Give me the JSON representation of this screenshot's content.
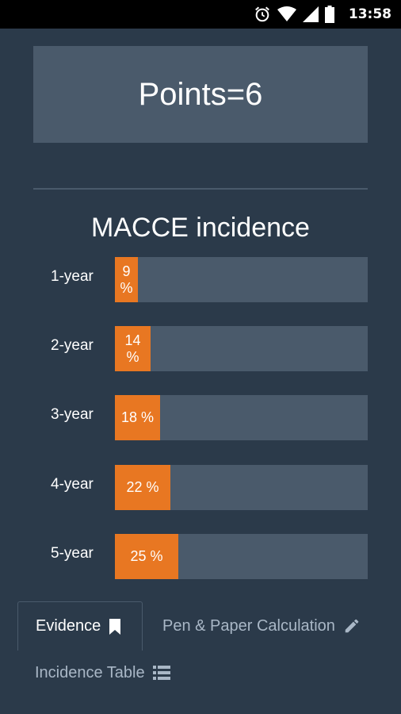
{
  "status_bar": {
    "time": "13:58",
    "icons": [
      "alarm-icon",
      "wifi-icon",
      "signal-icon",
      "battery-icon"
    ]
  },
  "score": {
    "text": "Points=6"
  },
  "incidence": {
    "title": "MACCE incidence",
    "rows": [
      {
        "label": "1-year",
        "value_text": "9 %",
        "fraction": 0.09
      },
      {
        "label": "2-year",
        "value_text": "14 %",
        "fraction": 0.14
      },
      {
        "label": "3-year",
        "value_text": "18 %",
        "fraction": 0.18
      },
      {
        "label": "4-year",
        "value_text": "22 %",
        "fraction": 0.22
      },
      {
        "label": "5-year",
        "value_text": "25 %",
        "fraction": 0.25
      }
    ]
  },
  "tabs": {
    "evidence": {
      "label": "Evidence",
      "icon": "bookmark-icon"
    },
    "pen_paper": {
      "label": "Pen & Paper Calculation",
      "icon": "pencil-icon"
    },
    "incidence_table": {
      "label": "Incidence Table",
      "icon": "list-icon"
    }
  },
  "colors": {
    "background": "#2b3a4a",
    "card": "#4a5a6b",
    "accent": "#e87722",
    "muted_text": "#a9b7c6"
  }
}
